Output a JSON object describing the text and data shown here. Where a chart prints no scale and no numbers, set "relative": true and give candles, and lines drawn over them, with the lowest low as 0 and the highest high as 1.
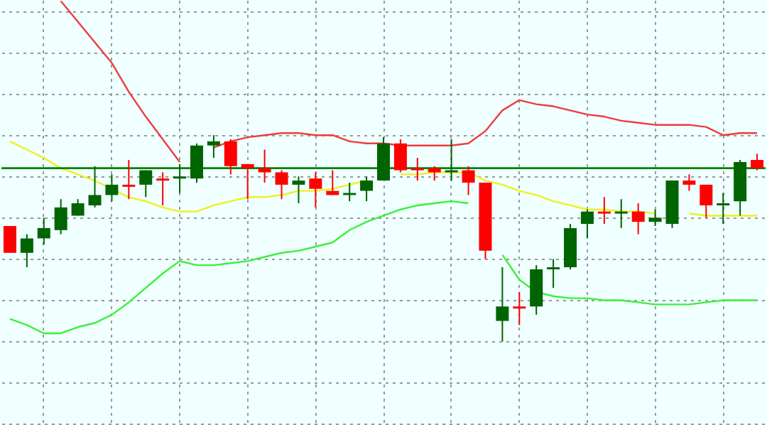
{
  "chart_data": {
    "type": "candlestick",
    "relative": true,
    "grid": true,
    "categories": [
      null,
      null,
      null,
      null,
      null,
      null,
      null,
      null,
      null,
      null,
      null,
      null,
      null,
      null,
      null,
      null,
      null,
      null,
      null,
      null,
      null,
      null,
      null,
      null,
      null,
      null,
      null,
      null,
      null,
      null,
      null,
      null,
      null,
      null,
      null,
      null,
      null,
      null,
      null,
      null,
      null,
      null,
      null,
      null,
      null
    ],
    "ohlc": [
      [
        0.56,
        0.56,
        0.43,
        0.43
      ],
      [
        0.43,
        0.52,
        0.36,
        0.5
      ],
      [
        0.5,
        0.6,
        0.47,
        0.55
      ],
      [
        0.54,
        0.69,
        0.52,
        0.65
      ],
      [
        0.61,
        0.69,
        0.61,
        0.67
      ],
      [
        0.66,
        0.85,
        0.65,
        0.71
      ],
      [
        0.71,
        0.81,
        0.68,
        0.76
      ],
      [
        0.76,
        0.88,
        0.69,
        0.75
      ],
      [
        0.76,
        0.83,
        0.7,
        0.83
      ],
      [
        0.79,
        0.82,
        0.66,
        0.78
      ],
      [
        0.79,
        0.86,
        0.72,
        0.8
      ],
      [
        0.79,
        0.96,
        0.77,
        0.95
      ],
      [
        0.95,
        1,
        0.89,
        0.97
      ],
      [
        0.97,
        0.98,
        0.81,
        0.85
      ],
      [
        0.86,
        0.86,
        0.69,
        0.84
      ],
      [
        0.84,
        0.93,
        0.77,
        0.82
      ],
      [
        0.82,
        0.83,
        0.69,
        0.76
      ],
      [
        0.76,
        0.8,
        0.67,
        0.78
      ],
      [
        0.79,
        0.82,
        0.65,
        0.74
      ],
      [
        0.73,
        0.83,
        0.71,
        0.71
      ],
      [
        0.71,
        0.77,
        0.68,
        0.72
      ],
      [
        0.73,
        0.8,
        0.68,
        0.78
      ],
      [
        0.78,
        0.99,
        0.78,
        0.96
      ],
      [
        0.96,
        0.98,
        0.82,
        0.83
      ],
      [
        0.84,
        0.89,
        0.78,
        0.83
      ],
      [
        0.84,
        0.85,
        0.78,
        0.82
      ],
      [
        0.82,
        0.98,
        0.78,
        0.83
      ],
      [
        0.83,
        0.85,
        0.71,
        0.77
      ],
      [
        0.77,
        0.77,
        0.4,
        0.44
      ],
      [
        0.1,
        0.36,
        0,
        0.17
      ],
      [
        0.17,
        0.24,
        0.08,
        0.16
      ],
      [
        0.17,
        0.37,
        0.13,
        0.35
      ],
      [
        0.35,
        0.4,
        0.26,
        0.36
      ],
      [
        0.36,
        0.57,
        0.35,
        0.55
      ],
      [
        0.57,
        0.64,
        0.5,
        0.63
      ],
      [
        0.63,
        0.7,
        0.57,
        0.62
      ],
      [
        0.62,
        0.69,
        0.55,
        0.63
      ],
      [
        0.63,
        0.67,
        0.52,
        0.58
      ],
      [
        0.58,
        0.64,
        0.56,
        0.6
      ],
      [
        0.57,
        0.78,
        0.55,
        0.78
      ],
      [
        0.78,
        0.81,
        0.73,
        0.76
      ],
      [
        0.76,
        0.76,
        0.6,
        0.66
      ],
      [
        0.66,
        0.72,
        0.57,
        0.67
      ],
      [
        0.68,
        0.88,
        0.61,
        0.87
      ],
      [
        0.88,
        0.91,
        0.83,
        0.84
      ]
    ],
    "colors": [
      "#ff0000",
      "#006400",
      "#006400",
      "#006400",
      "#006400",
      "#006400",
      "#006400",
      "#ff0000",
      "#006400",
      "#ff0000",
      "#006400",
      "#006400",
      "#006400",
      "#ff0000",
      "#ff0000",
      "#ff0000",
      "#ff0000",
      "#006400",
      "#ff0000",
      "#ff0000",
      "#006400",
      "#006400",
      "#006400",
      "#ff0000",
      "#ff0000",
      "#ff0000",
      "#006400",
      "#ff0000",
      "#ff0000",
      "#006400",
      "#ff0000",
      "#006400",
      "#006400",
      "#006400",
      "#006400",
      "#ff0000",
      "#006400",
      "#ff0000",
      "#006400",
      "#006400",
      "#ff0000",
      "#ff0000",
      "#006400",
      "#006400",
      "#ff0000"
    ],
    "series": [
      {
        "type": "line",
        "color": "#f03c3c",
        "values": [
          null,
          null,
          null,
          1.65,
          1.55,
          1.45,
          1.35,
          1.21,
          1.09,
          0.98,
          0.87,
          null,
          0.94,
          0.97,
          0.99,
          1.0,
          1.01,
          1.01,
          1.0,
          1.0,
          0.97,
          0.96,
          0.96,
          0.95,
          0.95,
          0.95,
          0.95,
          0.96,
          1.02,
          1.12,
          1.17,
          1.15,
          1.14,
          1.12,
          1.1,
          1.09,
          1.07,
          1.06,
          1.05,
          1.05,
          1.05,
          1.04,
          1.0,
          1.01,
          1.01
        ]
      },
      {
        "type": "line",
        "color": "#f0f020",
        "values": [
          0.97,
          0.93,
          0.89,
          0.84,
          0.81,
          0.78,
          0.74,
          0.7,
          0.68,
          0.65,
          0.63,
          0.63,
          0.66,
          0.68,
          0.7,
          0.7,
          0.71,
          0.73,
          0.73,
          0.74,
          0.76,
          0.78,
          null,
          0.81,
          0.81,
          0.82,
          0.82,
          0.82,
          0.78,
          0.76,
          0.73,
          0.71,
          0.68,
          0.66,
          0.64,
          0.64,
          0.63,
          0.63,
          0.62,
          null,
          0.62,
          0.61,
          0.61,
          0.61,
          0.61
        ]
      },
      {
        "type": "line",
        "color": "#3cf03c",
        "values": [
          0.11,
          0.08,
          0.04,
          0.04,
          0.07,
          0.09,
          0.13,
          0.19,
          0.26,
          0.33,
          0.39,
          0.37,
          0.37,
          0.38,
          0.39,
          0.41,
          0.43,
          0.44,
          0.46,
          0.48,
          0.54,
          0.58,
          0.61,
          0.64,
          0.66,
          0.67,
          0.68,
          0.67,
          null,
          0.42,
          0.3,
          0.24,
          0.22,
          0.21,
          0.21,
          0.2,
          0.2,
          0.19,
          0.18,
          0.18,
          0.18,
          0.19,
          0.2,
          0.2,
          0.2
        ]
      }
    ],
    "ref_lines": [
      {
        "axis": "y",
        "value": 0.84,
        "color": "#008000"
      }
    ]
  }
}
